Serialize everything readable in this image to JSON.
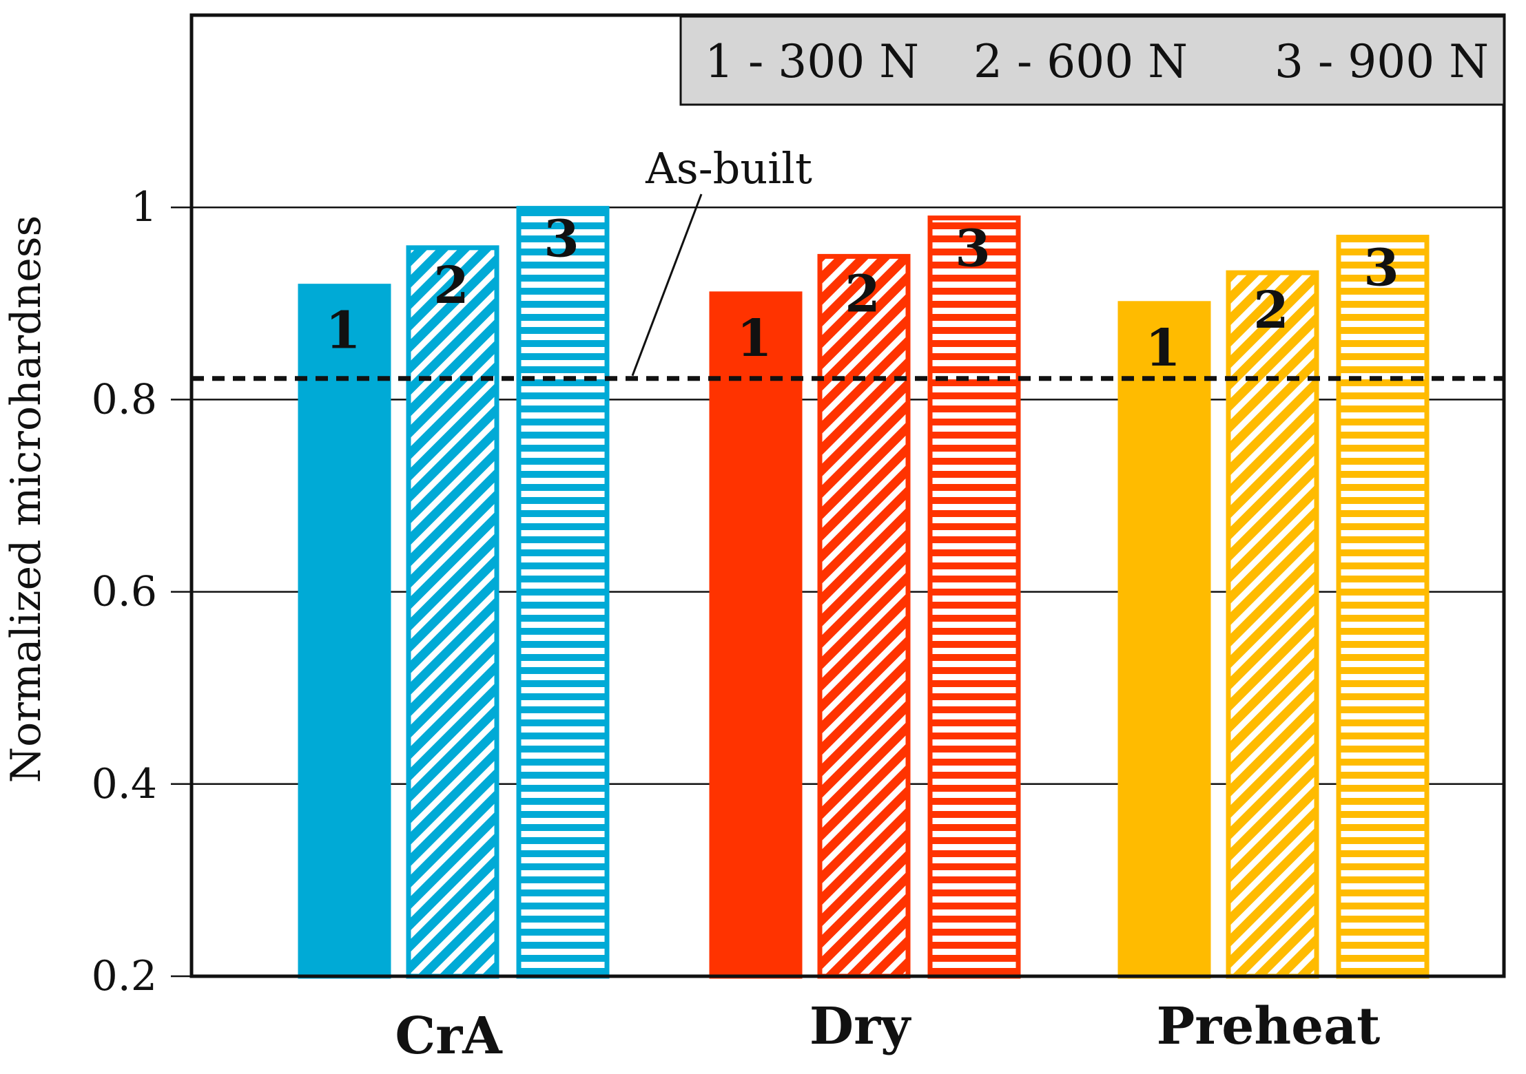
{
  "chart_data": {
    "type": "bar",
    "title": "",
    "xlabel": "",
    "ylabel": "Normalized microhardness",
    "ylim": [
      0.2,
      1.2
    ],
    "yticks": [
      0.2,
      0.4,
      0.6,
      0.8,
      1
    ],
    "ytick_labels": [
      "0.2",
      "0.4",
      "0.6",
      "0.8",
      "1"
    ],
    "grid": true,
    "categories": [
      "CrA",
      "Dry",
      "Preheat"
    ],
    "category_colors": [
      "#00aad6",
      "#ff3300",
      "#ffbb00"
    ],
    "series": [
      {
        "name": "1 - 300 N",
        "marker": "1",
        "pattern": "solid",
        "values": [
          0.918,
          0.91,
          0.9
        ]
      },
      {
        "name": "2 - 600 N",
        "marker": "2",
        "pattern": "diagonal",
        "values": [
          0.958,
          0.949,
          0.932
        ]
      },
      {
        "name": "3 - 900 N",
        "marker": "3",
        "pattern": "horizontal",
        "values": [
          0.999,
          0.989,
          0.969
        ]
      }
    ],
    "legend": {
      "position": "top-right",
      "entries": [
        "1 - 300 N",
        "2 - 600 N",
        "3 - 900 N"
      ]
    },
    "reference_line": {
      "label": "As-built",
      "value": 0.822,
      "style": "dashed"
    }
  }
}
